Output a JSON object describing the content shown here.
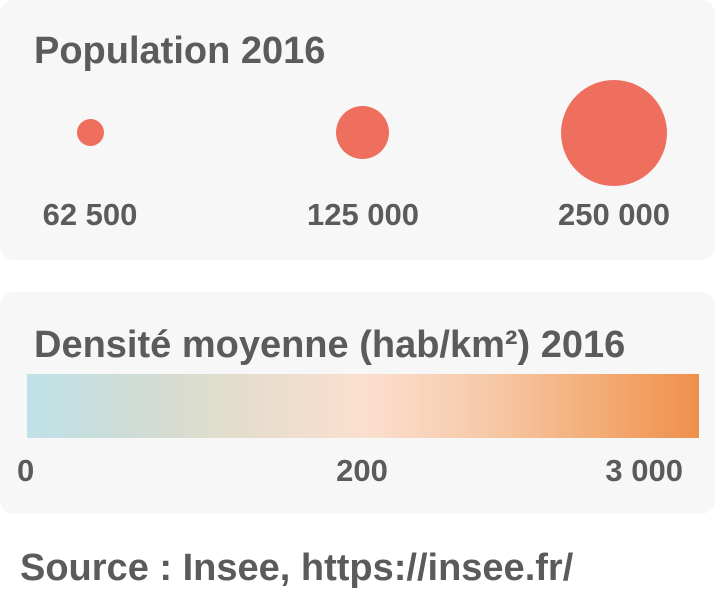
{
  "population_legend": {
    "title": "Population 2016",
    "color": "#ef6f5e",
    "items": [
      {
        "label": "62 500",
        "value": 62500
      },
      {
        "label": "125 000",
        "value": 125000
      },
      {
        "label": "250 000",
        "value": 250000
      }
    ]
  },
  "density_legend": {
    "title": "Densité moyenne (hab/km²) 2016",
    "gradient_colors": [
      "#bfe1e8",
      "#e2ddcc",
      "#fbdfcf",
      "#f3ac76",
      "#ef8f4c"
    ],
    "ticks": [
      "0",
      "200",
      "3 000"
    ]
  },
  "source": "Source : Insee, https://insee.fr/"
}
